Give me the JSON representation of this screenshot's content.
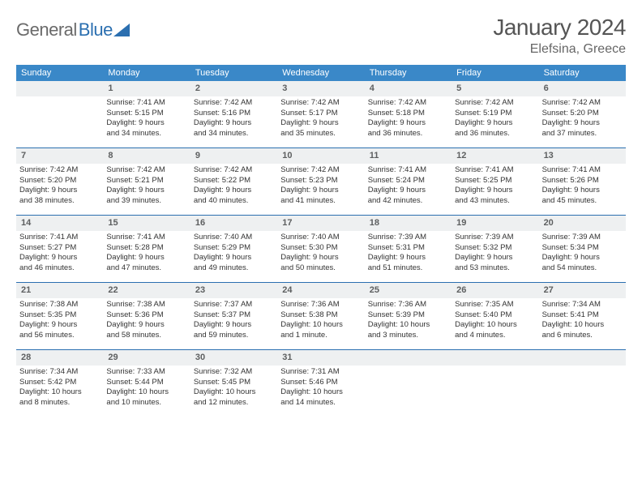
{
  "logo": {
    "text_gray": "General",
    "text_blue": "Blue"
  },
  "header": {
    "month_title": "January 2024",
    "location": "Elefsina, Greece"
  },
  "colors": {
    "header_bar": "#3a88c8",
    "week_divider": "#2b6fb0",
    "daynum_bg": "#eef0f1",
    "text": "#333333",
    "logo_gray": "#6a6a6a",
    "logo_blue": "#2b6fb0"
  },
  "weekdays": [
    "Sunday",
    "Monday",
    "Tuesday",
    "Wednesday",
    "Thursday",
    "Friday",
    "Saturday"
  ],
  "weeks": [
    [
      {
        "blank": true
      },
      {
        "n": "1",
        "sr": "Sunrise: 7:41 AM",
        "ss": "Sunset: 5:15 PM",
        "d1": "Daylight: 9 hours",
        "d2": "and 34 minutes."
      },
      {
        "n": "2",
        "sr": "Sunrise: 7:42 AM",
        "ss": "Sunset: 5:16 PM",
        "d1": "Daylight: 9 hours",
        "d2": "and 34 minutes."
      },
      {
        "n": "3",
        "sr": "Sunrise: 7:42 AM",
        "ss": "Sunset: 5:17 PM",
        "d1": "Daylight: 9 hours",
        "d2": "and 35 minutes."
      },
      {
        "n": "4",
        "sr": "Sunrise: 7:42 AM",
        "ss": "Sunset: 5:18 PM",
        "d1": "Daylight: 9 hours",
        "d2": "and 36 minutes."
      },
      {
        "n": "5",
        "sr": "Sunrise: 7:42 AM",
        "ss": "Sunset: 5:19 PM",
        "d1": "Daylight: 9 hours",
        "d2": "and 36 minutes."
      },
      {
        "n": "6",
        "sr": "Sunrise: 7:42 AM",
        "ss": "Sunset: 5:20 PM",
        "d1": "Daylight: 9 hours",
        "d2": "and 37 minutes."
      }
    ],
    [
      {
        "n": "7",
        "sr": "Sunrise: 7:42 AM",
        "ss": "Sunset: 5:20 PM",
        "d1": "Daylight: 9 hours",
        "d2": "and 38 minutes."
      },
      {
        "n": "8",
        "sr": "Sunrise: 7:42 AM",
        "ss": "Sunset: 5:21 PM",
        "d1": "Daylight: 9 hours",
        "d2": "and 39 minutes."
      },
      {
        "n": "9",
        "sr": "Sunrise: 7:42 AM",
        "ss": "Sunset: 5:22 PM",
        "d1": "Daylight: 9 hours",
        "d2": "and 40 minutes."
      },
      {
        "n": "10",
        "sr": "Sunrise: 7:42 AM",
        "ss": "Sunset: 5:23 PM",
        "d1": "Daylight: 9 hours",
        "d2": "and 41 minutes."
      },
      {
        "n": "11",
        "sr": "Sunrise: 7:41 AM",
        "ss": "Sunset: 5:24 PM",
        "d1": "Daylight: 9 hours",
        "d2": "and 42 minutes."
      },
      {
        "n": "12",
        "sr": "Sunrise: 7:41 AM",
        "ss": "Sunset: 5:25 PM",
        "d1": "Daylight: 9 hours",
        "d2": "and 43 minutes."
      },
      {
        "n": "13",
        "sr": "Sunrise: 7:41 AM",
        "ss": "Sunset: 5:26 PM",
        "d1": "Daylight: 9 hours",
        "d2": "and 45 minutes."
      }
    ],
    [
      {
        "n": "14",
        "sr": "Sunrise: 7:41 AM",
        "ss": "Sunset: 5:27 PM",
        "d1": "Daylight: 9 hours",
        "d2": "and 46 minutes."
      },
      {
        "n": "15",
        "sr": "Sunrise: 7:41 AM",
        "ss": "Sunset: 5:28 PM",
        "d1": "Daylight: 9 hours",
        "d2": "and 47 minutes."
      },
      {
        "n": "16",
        "sr": "Sunrise: 7:40 AM",
        "ss": "Sunset: 5:29 PM",
        "d1": "Daylight: 9 hours",
        "d2": "and 49 minutes."
      },
      {
        "n": "17",
        "sr": "Sunrise: 7:40 AM",
        "ss": "Sunset: 5:30 PM",
        "d1": "Daylight: 9 hours",
        "d2": "and 50 minutes."
      },
      {
        "n": "18",
        "sr": "Sunrise: 7:39 AM",
        "ss": "Sunset: 5:31 PM",
        "d1": "Daylight: 9 hours",
        "d2": "and 51 minutes."
      },
      {
        "n": "19",
        "sr": "Sunrise: 7:39 AM",
        "ss": "Sunset: 5:32 PM",
        "d1": "Daylight: 9 hours",
        "d2": "and 53 minutes."
      },
      {
        "n": "20",
        "sr": "Sunrise: 7:39 AM",
        "ss": "Sunset: 5:34 PM",
        "d1": "Daylight: 9 hours",
        "d2": "and 54 minutes."
      }
    ],
    [
      {
        "n": "21",
        "sr": "Sunrise: 7:38 AM",
        "ss": "Sunset: 5:35 PM",
        "d1": "Daylight: 9 hours",
        "d2": "and 56 minutes."
      },
      {
        "n": "22",
        "sr": "Sunrise: 7:38 AM",
        "ss": "Sunset: 5:36 PM",
        "d1": "Daylight: 9 hours",
        "d2": "and 58 minutes."
      },
      {
        "n": "23",
        "sr": "Sunrise: 7:37 AM",
        "ss": "Sunset: 5:37 PM",
        "d1": "Daylight: 9 hours",
        "d2": "and 59 minutes."
      },
      {
        "n": "24",
        "sr": "Sunrise: 7:36 AM",
        "ss": "Sunset: 5:38 PM",
        "d1": "Daylight: 10 hours",
        "d2": "and 1 minute."
      },
      {
        "n": "25",
        "sr": "Sunrise: 7:36 AM",
        "ss": "Sunset: 5:39 PM",
        "d1": "Daylight: 10 hours",
        "d2": "and 3 minutes."
      },
      {
        "n": "26",
        "sr": "Sunrise: 7:35 AM",
        "ss": "Sunset: 5:40 PM",
        "d1": "Daylight: 10 hours",
        "d2": "and 4 minutes."
      },
      {
        "n": "27",
        "sr": "Sunrise: 7:34 AM",
        "ss": "Sunset: 5:41 PM",
        "d1": "Daylight: 10 hours",
        "d2": "and 6 minutes."
      }
    ],
    [
      {
        "n": "28",
        "sr": "Sunrise: 7:34 AM",
        "ss": "Sunset: 5:42 PM",
        "d1": "Daylight: 10 hours",
        "d2": "and 8 minutes."
      },
      {
        "n": "29",
        "sr": "Sunrise: 7:33 AM",
        "ss": "Sunset: 5:44 PM",
        "d1": "Daylight: 10 hours",
        "d2": "and 10 minutes."
      },
      {
        "n": "30",
        "sr": "Sunrise: 7:32 AM",
        "ss": "Sunset: 5:45 PM",
        "d1": "Daylight: 10 hours",
        "d2": "and 12 minutes."
      },
      {
        "n": "31",
        "sr": "Sunrise: 7:31 AM",
        "ss": "Sunset: 5:46 PM",
        "d1": "Daylight: 10 hours",
        "d2": "and 14 minutes."
      },
      {
        "blank": true
      },
      {
        "blank": true
      },
      {
        "blank": true
      }
    ]
  ]
}
